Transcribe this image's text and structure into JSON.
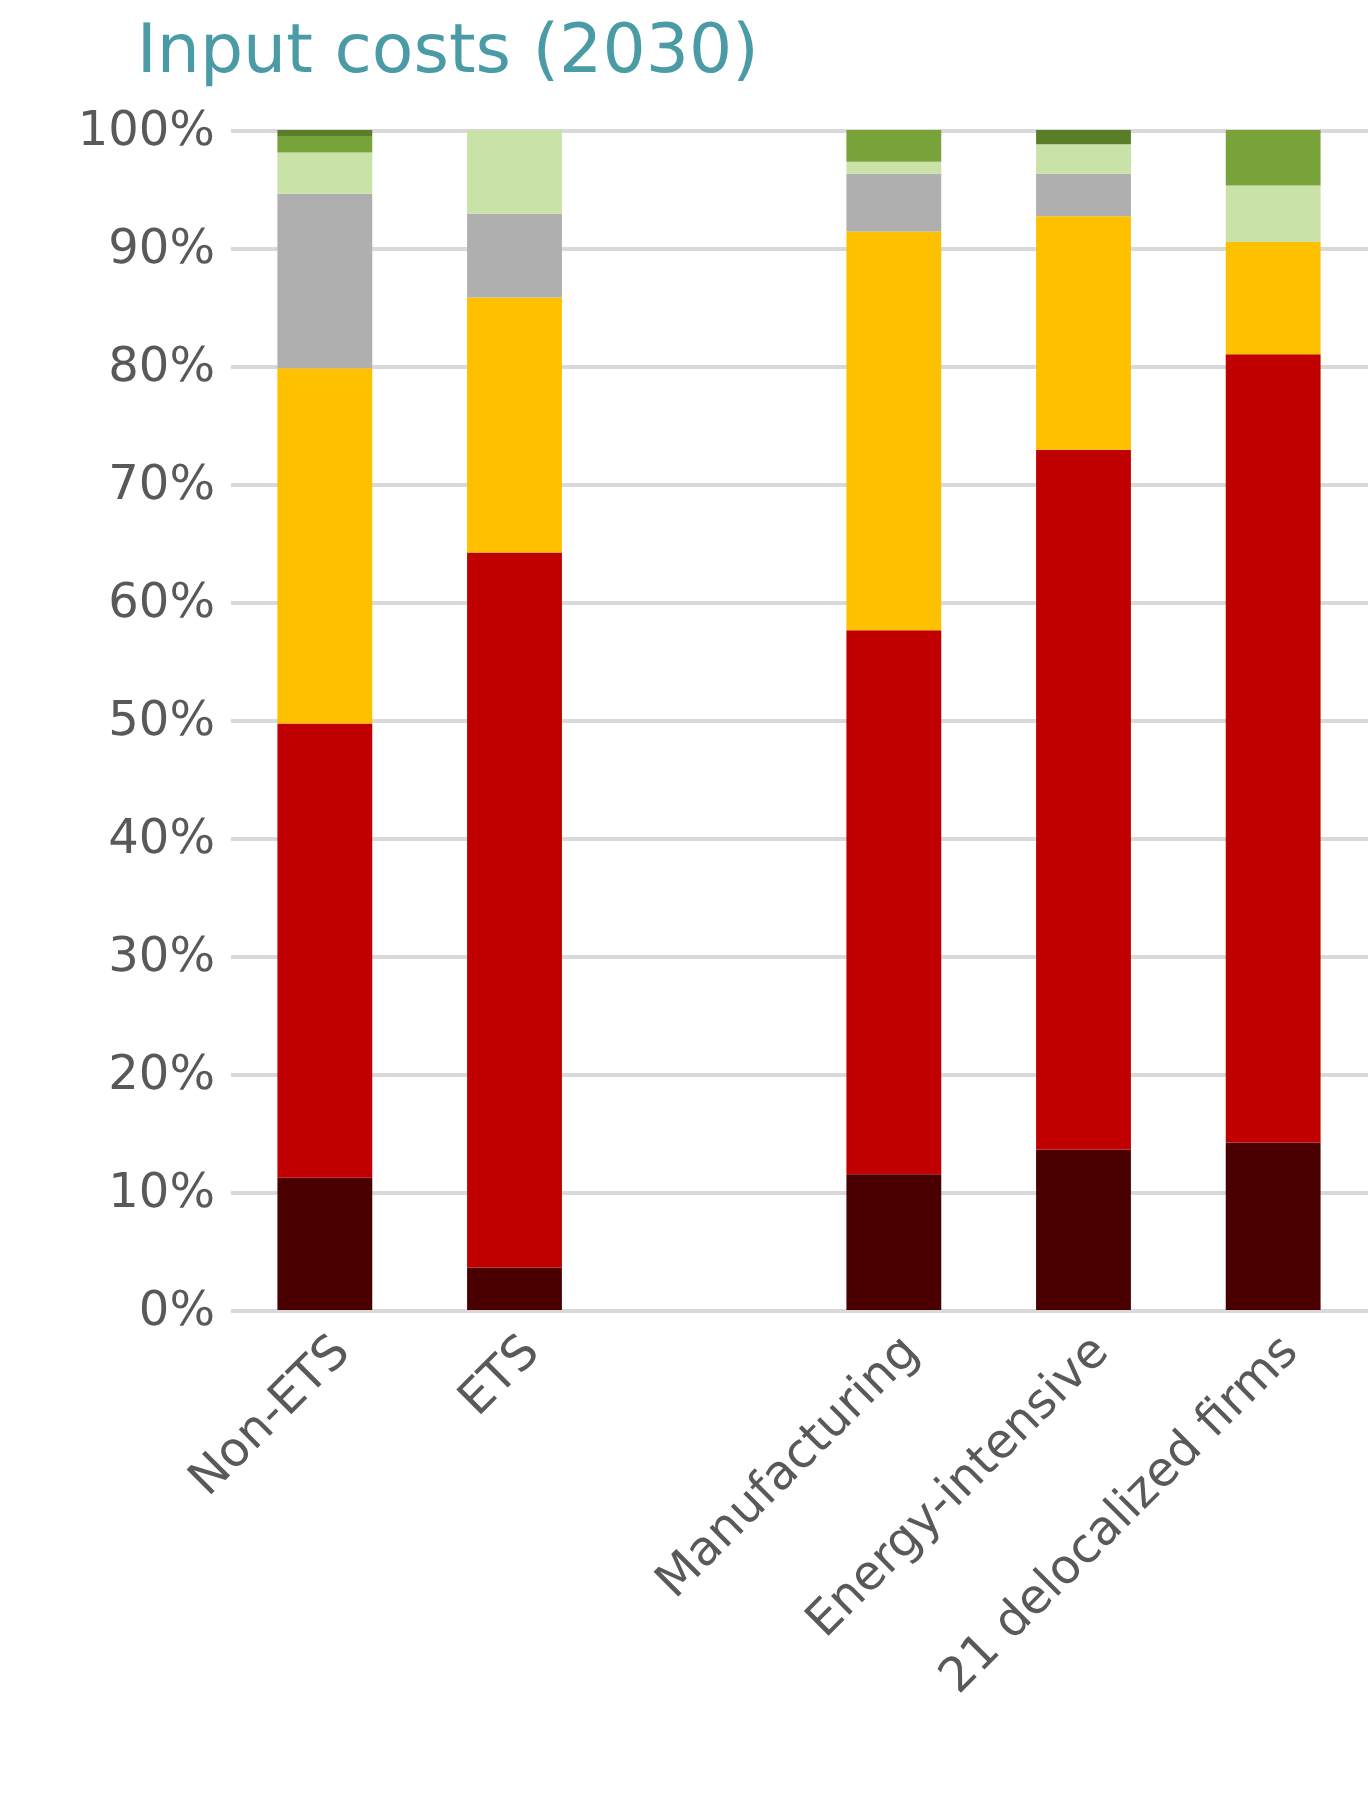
{
  "chart_data": {
    "type": "bar",
    "title": "Input costs (2030)",
    "stacked": true,
    "grid": "y",
    "legend": false,
    "categories": [
      "Non-ETS",
      "ETS",
      null,
      "Manufacturing",
      "Energy-intensive",
      "21 delocalized firms"
    ],
    "ylim": [
      0,
      100
    ],
    "yticks": [
      {
        "value": 0,
        "label": "0%"
      },
      {
        "value": 10,
        "label": "10%"
      },
      {
        "value": 20,
        "label": "20%"
      },
      {
        "value": 30,
        "label": "30%"
      },
      {
        "value": 40,
        "label": "40%"
      },
      {
        "value": 50,
        "label": "50%"
      },
      {
        "value": 60,
        "label": "60%"
      },
      {
        "value": 70,
        "label": "70%"
      },
      {
        "value": 80,
        "label": "80%"
      },
      {
        "value": 90,
        "label": "90%"
      },
      {
        "value": 100,
        "label": "100%"
      }
    ],
    "series": [
      {
        "color": "#4a0000",
        "values": [
          11.2,
          3.6,
          null,
          11.5,
          13.6,
          14.2
        ]
      },
      {
        "color": "#c00000",
        "values": [
          38.5,
          60.6,
          null,
          46.1,
          59.3,
          66.8
        ]
      },
      {
        "color": "#ffc000",
        "values": [
          30.1,
          21.6,
          null,
          33.8,
          19.8,
          9.5
        ]
      },
      {
        "color": "#afafaf",
        "values": [
          14.8,
          7.1,
          null,
          4.9,
          3.6,
          null
        ]
      },
      {
        "color": "#c9e2a8",
        "values": [
          3.5,
          7.1,
          null,
          1.0,
          2.5,
          4.8
        ]
      },
      {
        "color": "#78a33a",
        "values": [
          1.4,
          null,
          null,
          2.7,
          null,
          4.7
        ]
      },
      {
        "color": "#5a7d2a",
        "values": [
          0.5,
          null,
          null,
          null,
          1.2,
          null
        ]
      }
    ]
  }
}
